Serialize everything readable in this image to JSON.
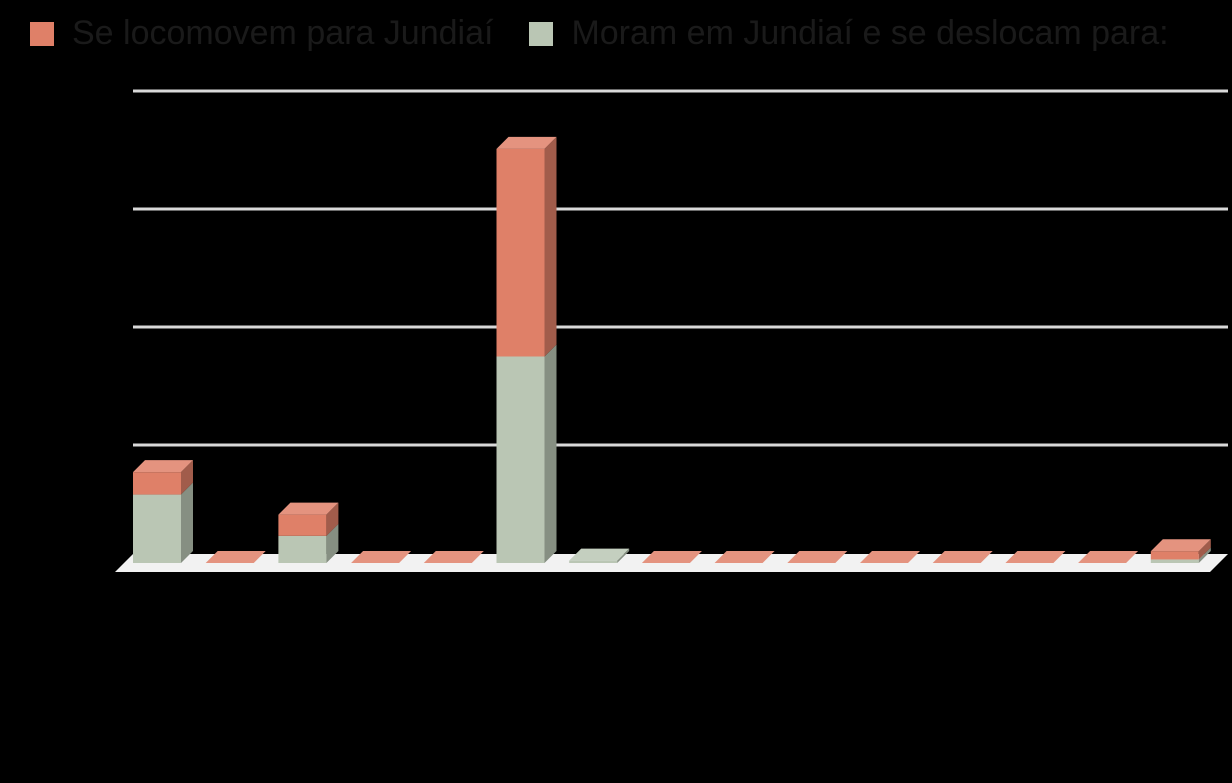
{
  "chart_data": {
    "type": "bar",
    "stacked": true,
    "three_d": true,
    "categories": [
      "",
      "",
      "",
      "",
      "",
      "",
      "",
      "",
      "",
      "",
      "",
      "",
      "",
      "",
      ""
    ],
    "series": [
      {
        "name": "Moram em Jundiaí e se deslocam para:",
        "color": "#bac6b4",
        "values": [
          0.58,
          0,
          0.23,
          0,
          0,
          1.75,
          0.02,
          0,
          0,
          0,
          0,
          0,
          0,
          0,
          0.03
        ]
      },
      {
        "name": "Se locomovem para Jundiaí",
        "color": "#df8068",
        "values": [
          0.19,
          0,
          0.18,
          0,
          0,
          1.76,
          0,
          0,
          0,
          0,
          0,
          0,
          0,
          0,
          0.07
        ]
      }
    ],
    "ylim": [
      0,
      4
    ],
    "gridlines": true,
    "legend_position": "top-left"
  },
  "legend": {
    "item1_label": "Se locomovem para Jundiaí",
    "item1_color": "#df8068",
    "item2_label": "Moram em Jundiaí e se deslocam para:",
    "item2_color": "#bac6b4"
  }
}
